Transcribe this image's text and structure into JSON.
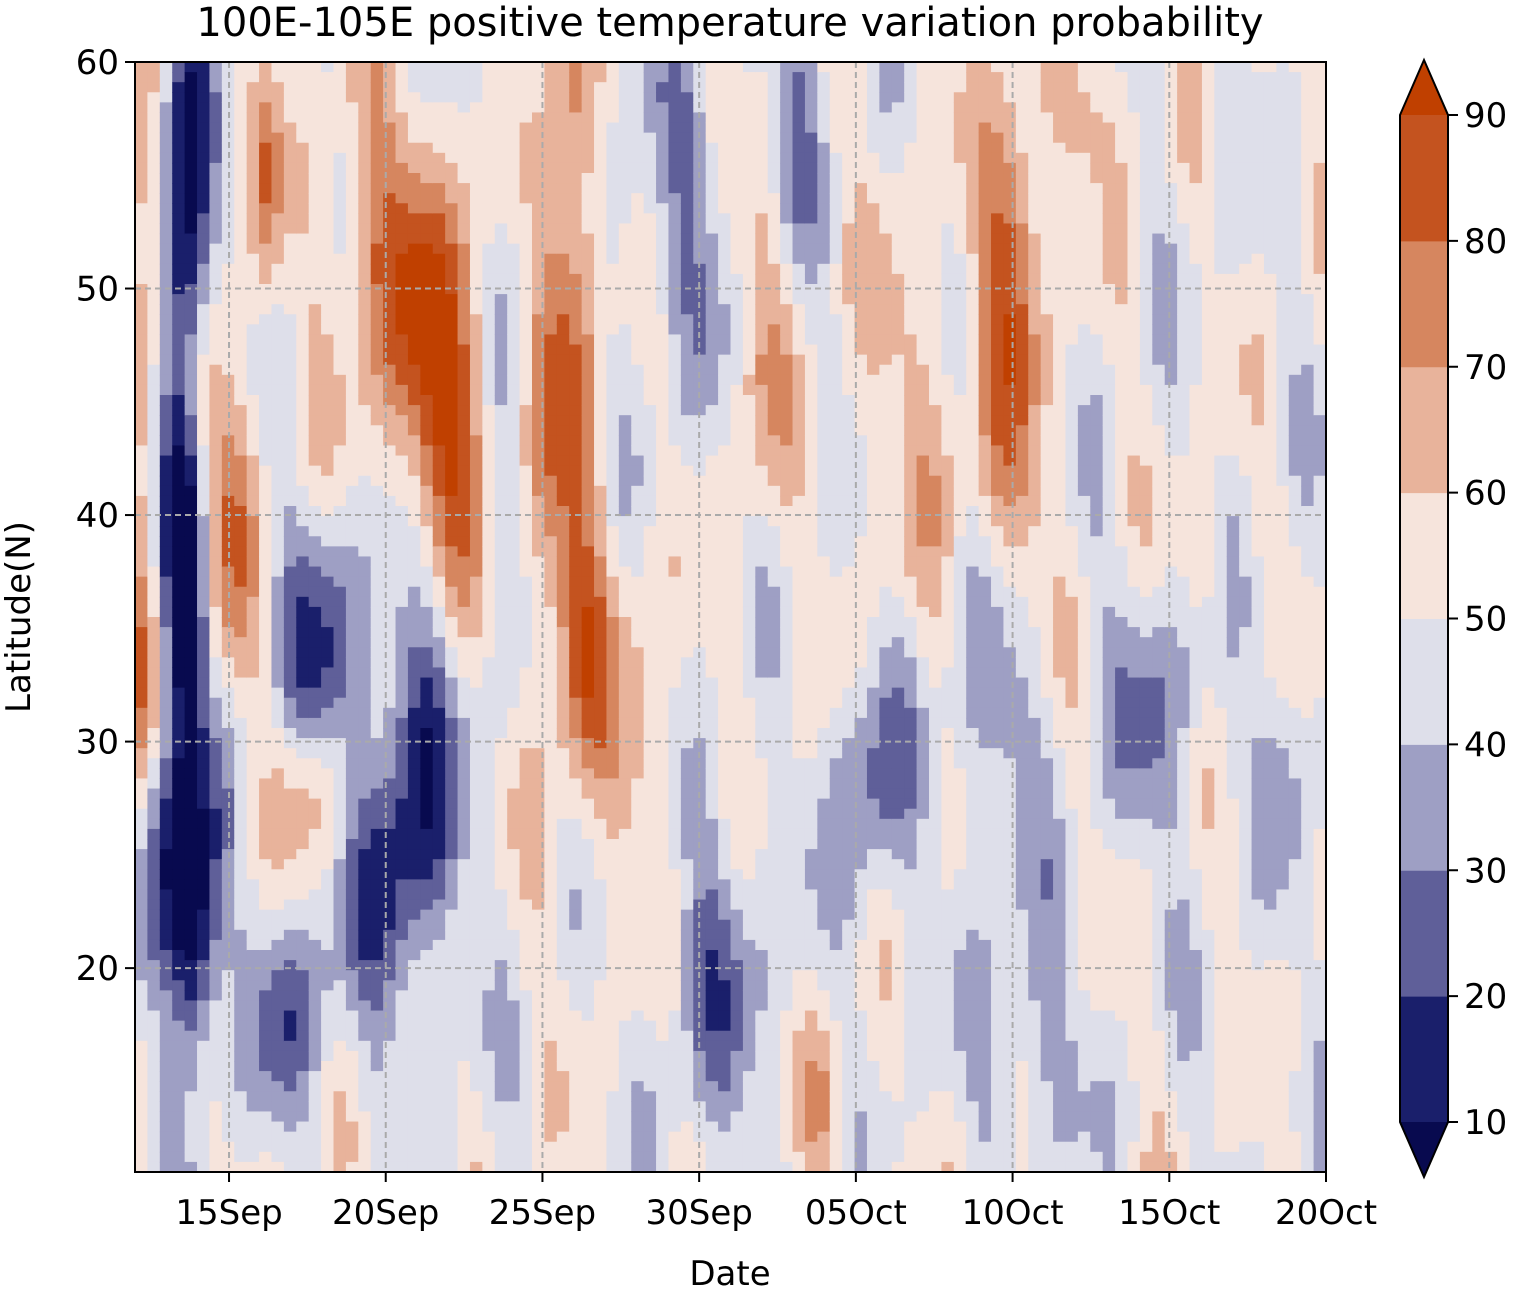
{
  "chart_data": {
    "type": "heatmap",
    "title": "100E-105E positive temperature variation probability",
    "xlabel": "Date",
    "ylabel": "Latitude(N)",
    "x_range": [
      "2023-09-12",
      "2023-10-20"
    ],
    "x_ticks": [
      {
        "date": "2023-09-15",
        "label": "15Sep"
      },
      {
        "date": "2023-09-20",
        "label": "20Sep"
      },
      {
        "date": "2023-09-25",
        "label": "25Sep"
      },
      {
        "date": "2023-09-30",
        "label": "30Sep"
      },
      {
        "date": "2023-10-05",
        "label": "05Oct"
      },
      {
        "date": "2023-10-10",
        "label": "10Oct"
      },
      {
        "date": "2023-10-15",
        "label": "15Oct"
      },
      {
        "date": "2023-10-20",
        "label": "20Oct"
      }
    ],
    "ylim": [
      11,
      60
    ],
    "y_ticks": [
      20,
      30,
      40,
      50,
      60
    ],
    "grid": true,
    "colorbar": {
      "levels": [
        10,
        20,
        30,
        40,
        50,
        60,
        70,
        80,
        90
      ],
      "labels": [
        "10",
        "20",
        "30",
        "40",
        "50",
        "60",
        "70",
        "80",
        "90"
      ],
      "colors": [
        "#1a1f6b",
        "#5f5f99",
        "#9e9fc4",
        "#dedfea",
        "#f6e4dc",
        "#e8b39b",
        "#d6865f",
        "#c4531f"
      ],
      "under_color": "#080a4f",
      "over_color": "#c04000",
      "extend": "both"
    },
    "dominant_features": [
      {
        "date": "2023-09-14",
        "lat_range": [
          18,
          60
        ],
        "prob": 10,
        "desc": "low band"
      },
      {
        "date": "2023-09-22",
        "lat_range": [
          40,
          52
        ],
        "prob": 85
      },
      {
        "date": "2023-09-25",
        "lat_range": [
          35,
          60
        ],
        "prob": 75
      },
      {
        "date": "2023-09-21",
        "lat_range": [
          24,
          38
        ],
        "prob": 25
      },
      {
        "date": "2023-10-11",
        "lat_range": [
          45,
          56
        ],
        "prob": 75
      }
    ]
  }
}
